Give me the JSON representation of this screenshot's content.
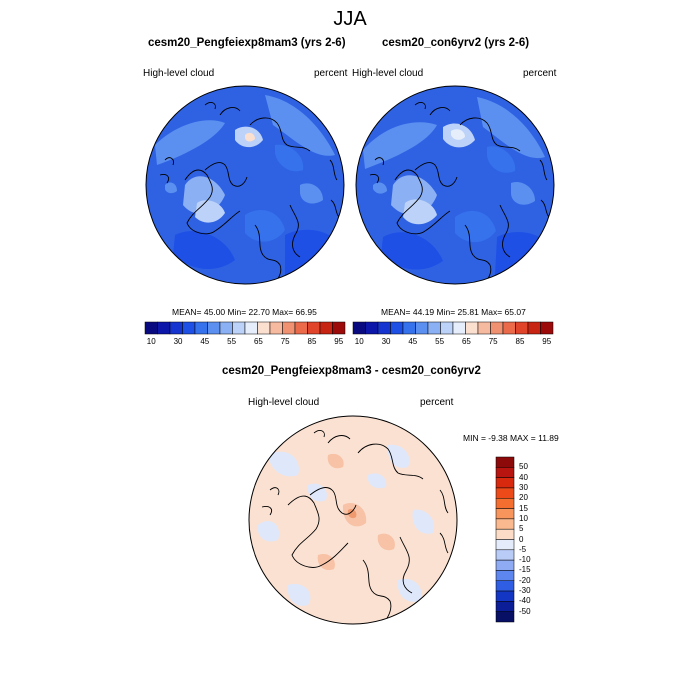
{
  "title": "JJA",
  "panels": [
    {
      "title": "cesm20_Pengfeiexp8mam3 (yrs 2-6)",
      "variable": "High-level cloud",
      "units": "percent",
      "stats": "MEAN=  45.00  Min=  22.70  Max=  66.95"
    },
    {
      "title": "cesm20_con6yrv2 (yrs 2-6)",
      "variable": "High-level cloud",
      "units": "percent",
      "stats": "MEAN=  44.19  Min=  25.81  Max=  65.07"
    }
  ],
  "colorbar_top": {
    "labels": [
      "10",
      "30",
      "45",
      "55",
      "65",
      "75",
      "85",
      "95"
    ],
    "colors": [
      "#0a0a80",
      "#0c16a8",
      "#1634d0",
      "#1e50e6",
      "#3572ec",
      "#5b90f0",
      "#8bb0f4",
      "#bcd2f8",
      "#e6eefc",
      "#fbe0d0",
      "#f6baa0",
      "#f09272",
      "#ea6a4a",
      "#e0442a",
      "#c82414",
      "#9c0a0a"
    ]
  },
  "diff": {
    "title": "cesm20_Pengfeiexp8mam3 - cesm20_con6yrv2",
    "variable": "High-level cloud",
    "units": "percent",
    "stats": "MIN =  -9.38 MAX =  11.89"
  },
  "colorbar_diff": {
    "labels": [
      "50",
      "40",
      "30",
      "20",
      "15",
      "10",
      "5",
      "0",
      "-5",
      "-10",
      "-15",
      "-20",
      "-30",
      "-40",
      "-50"
    ],
    "colors": [
      "#8c0a0a",
      "#b81410",
      "#d8280e",
      "#ec4a18",
      "#f46e30",
      "#f7955c",
      "#fab98e",
      "#fcdcc6",
      "#e4ecfb",
      "#b9ccf8",
      "#8eabf4",
      "#5d86ee",
      "#2f5ee4",
      "#1436c4",
      "#0b1e98",
      "#071064"
    ]
  },
  "colors": {
    "map_base_blue": "#2f62e3",
    "diff_base": "#fbe1d2"
  }
}
